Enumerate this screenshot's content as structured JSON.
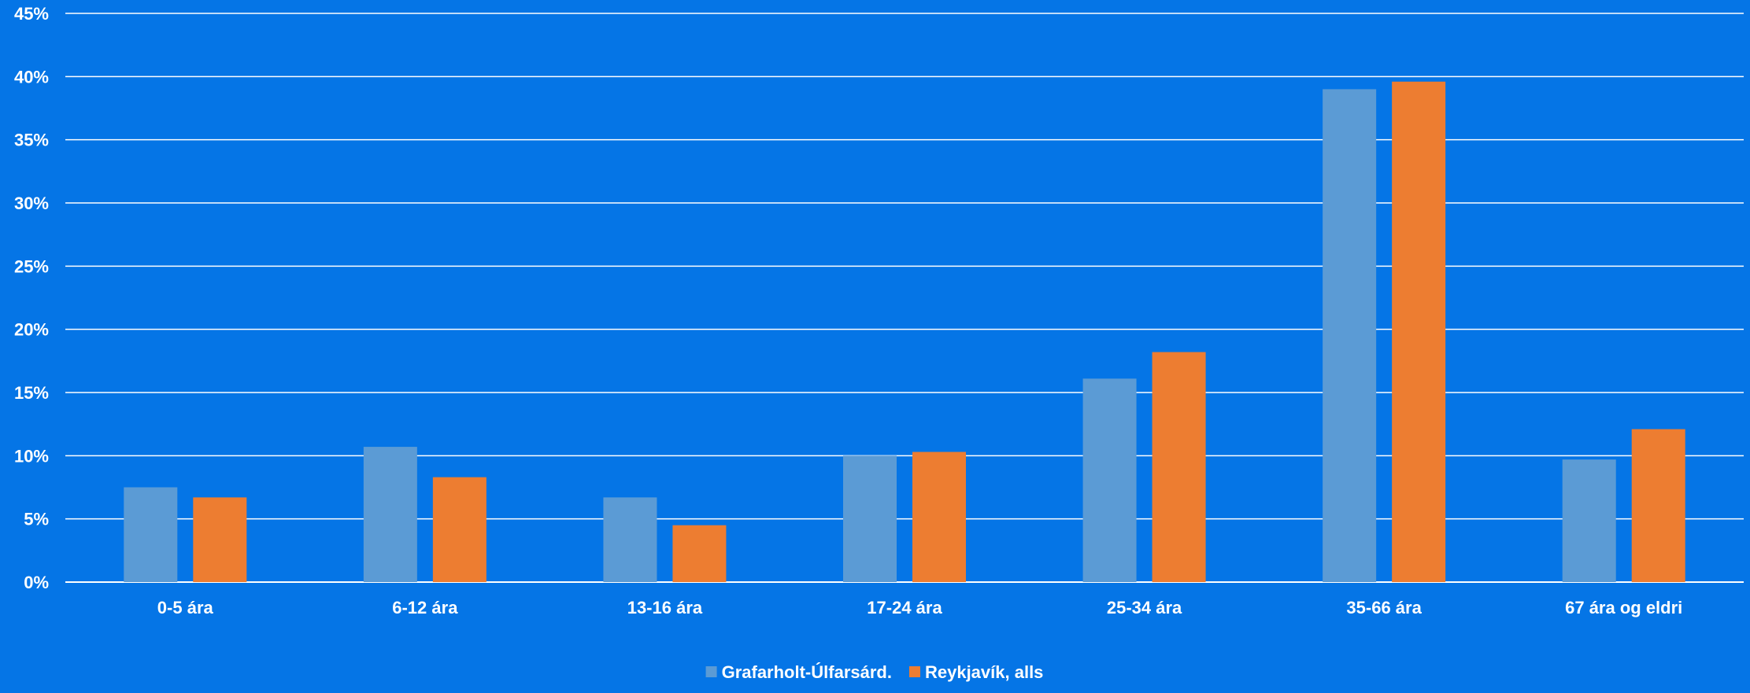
{
  "chart_data": {
    "type": "bar",
    "title": "",
    "xlabel": "",
    "ylabel": "",
    "ylim": [
      0,
      45
    ],
    "yticks": [
      "0%",
      "5%",
      "10%",
      "15%",
      "20%",
      "25%",
      "30%",
      "35%",
      "40%",
      "45%"
    ],
    "categories": [
      "0-5 ára",
      "6-12 ára",
      "13-16 ára",
      "17-24 ára",
      "25-34 ára",
      "35-66 ára",
      "67 ára og eldri"
    ],
    "series": [
      {
        "name": "Grafarholt-Úlfarsárd.",
        "color": "#5B9BD5",
        "values": [
          7.5,
          10.7,
          6.7,
          10.0,
          16.1,
          39.0,
          9.7
        ]
      },
      {
        "name": "Reykjavík, alls",
        "color": "#ED7D31",
        "values": [
          6.7,
          8.3,
          4.5,
          10.3,
          18.2,
          39.6,
          12.1
        ]
      }
    ],
    "grid": true,
    "legend_position": "bottom-center",
    "background_color": "#0575E6",
    "gridline_color": "#FFFFFF"
  }
}
